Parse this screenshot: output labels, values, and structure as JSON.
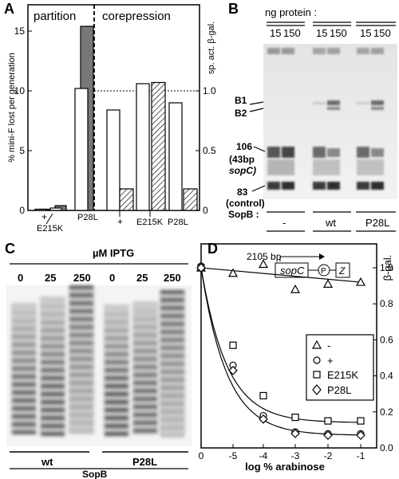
{
  "panel_A": {
    "letter": "A",
    "left_header": "partition",
    "right_header": "corepression",
    "ylabel_left": "% mini-F lost per generation",
    "ylabel_right": "sp. act. β-gal.",
    "left_ticks": [
      "0",
      "5",
      "10",
      "15"
    ],
    "right_ticks": [
      "0",
      "0.5",
      "1.0"
    ],
    "partition_labels": [
      "+",
      "E215K",
      "P28L"
    ],
    "corepression_labels": [
      "+",
      "E215K",
      "P28L"
    ],
    "chart_data": {
      "type": "bar",
      "title": "",
      "partition": {
        "ylabel": "% mini-F lost per generation",
        "ylim": [
          0,
          16.5
        ],
        "categories": [
          "+",
          "E215K",
          "P28L"
        ],
        "series": [
          {
            "values": [
              0.1,
              0.2,
              10.2
            ]
          },
          {
            "values": [
              0.1,
              0.4,
              15.4
            ]
          }
        ]
      },
      "corepression": {
        "ylabel": "sp. act. β-gal.",
        "ylim": [
          0,
          1.65
        ],
        "reference_line": 1.0,
        "categories": [
          "+",
          "E215K",
          "P28L"
        ],
        "series": [
          {
            "values": [
              0.84,
              1.06,
              0.9
            ]
          },
          {
            "values": [
              0.18,
              1.07,
              0.18
            ]
          }
        ]
      }
    }
  },
  "panel_B": {
    "letter": "B",
    "header": "ng protein :",
    "lane_amounts": [
      "15",
      "150",
      "15",
      "150",
      "15",
      "150"
    ],
    "band_labels": {
      "b1": "B1",
      "b2": "B2",
      "l106": "106",
      "l43": "(43bp",
      "sopc": "sopC)",
      "l83": "83",
      "control": "(control)"
    },
    "row_label": "SopB :",
    "groups": [
      "-",
      "wt",
      "P28L"
    ]
  },
  "panel_C": {
    "letter": "C",
    "header": "µM IPTG",
    "concentrations": [
      "0",
      "25",
      "250",
      "0",
      "25",
      "250"
    ],
    "groups": [
      "wt",
      "P28L"
    ],
    "footer": "SopB"
  },
  "panel_D": {
    "letter": "D",
    "xlabel": "log % arabinose",
    "ylabel": "β-gal.",
    "x_ticks": [
      "0",
      "-5",
      "-4",
      "-3",
      "-2",
      "-1"
    ],
    "y_ticks": [
      "0.0",
      "0.2",
      "0.4",
      "0.6",
      "0.8",
      "1.0"
    ],
    "construct": {
      "length": "2105 bp",
      "site": "sopC",
      "promoter": "P",
      "gene": "Z"
    },
    "chart_data": {
      "type": "scatter",
      "title": "",
      "xlabel": "log % arabinose",
      "ylabel": "β-gal.",
      "ylim": [
        0,
        1.1
      ],
      "legend": "center-right",
      "series": [
        {
          "name": "-",
          "marker": "triangle",
          "x": [
            "0",
            "-5",
            "-4",
            "-3",
            "-2",
            "-1"
          ],
          "y": [
            1.0,
            0.97,
            1.02,
            0.88,
            0.91,
            0.92
          ]
        },
        {
          "name": "+",
          "marker": "circle",
          "x": [
            "0",
            "-5",
            "-4",
            "-3",
            "-2",
            "-1"
          ],
          "y": [
            1.0,
            0.45,
            0.17,
            0.08,
            0.07,
            0.07
          ]
        },
        {
          "name": "E215K",
          "marker": "square",
          "x": [
            "0",
            "-5",
            "-4",
            "-3",
            "-2",
            "-1"
          ],
          "y": [
            1.0,
            0.57,
            0.29,
            0.17,
            0.15,
            0.15
          ]
        },
        {
          "name": "P28L",
          "marker": "diamond",
          "x": [
            "0",
            "-5",
            "-4",
            "-3",
            "-2",
            "-1"
          ],
          "y": [
            1.0,
            0.43,
            0.16,
            0.08,
            0.07,
            0.07
          ]
        }
      ]
    }
  }
}
